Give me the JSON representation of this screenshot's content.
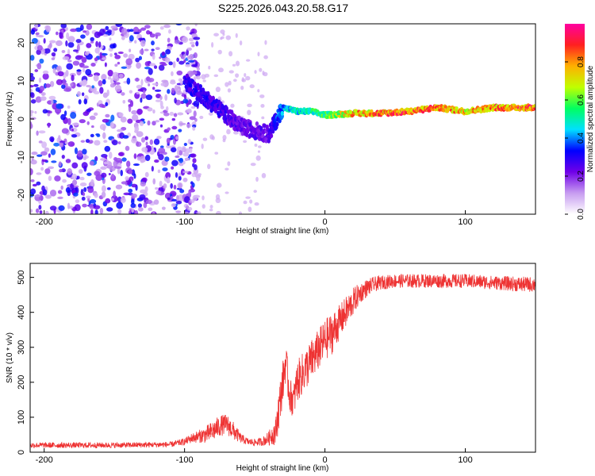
{
  "figure": {
    "title": "S225.2026.043.20.58.G17"
  },
  "chart_data": [
    {
      "type": "heatmap",
      "title": "S225.2026.043.20.58.G17",
      "xlabel": "Height of straight line (km)",
      "ylabel": "Frequency (Hz)",
      "xlim": [
        -210,
        150
      ],
      "ylim": [
        -25,
        25
      ],
      "xticks": [
        -200,
        -100,
        0,
        100
      ],
      "yticks": [
        -20,
        -10,
        0,
        10,
        20
      ],
      "colorbar": {
        "label": "Normalized spectral amplitude",
        "range": [
          0.0,
          1.0
        ],
        "ticks": [
          0.0,
          0.2,
          0.4,
          0.6,
          0.8
        ],
        "tick_labels": [
          "0.0",
          "0.2",
          "0.4",
          "0.6",
          "0.8"
        ],
        "colors": [
          "#ffffff",
          "#c79cf0",
          "#7000e8",
          "#0000ff",
          "#00e0ff",
          "#00ff60",
          "#c0ff00",
          "#ffb000",
          "#ff2020",
          "#ff00a0"
        ]
      },
      "ridge": {
        "description_points_height_km": [
          -100,
          -80,
          -60,
          -40,
          -30,
          -20,
          -10,
          0,
          20,
          40,
          60,
          80,
          100,
          120,
          150
        ],
        "frequency_hz": [
          10,
          4,
          -2,
          -4,
          3,
          2,
          2,
          1,
          1.5,
          1.5,
          2,
          3,
          2,
          3,
          3
        ],
        "amplitude": [
          0.3,
          0.3,
          0.25,
          0.25,
          0.45,
          0.5,
          0.55,
          0.6,
          0.8,
          0.85,
          0.9,
          0.85,
          0.8,
          0.85,
          0.9
        ]
      },
      "noise_region_km": [
        -210,
        -100
      ]
    },
    {
      "type": "line",
      "xlabel": "Height of straight line (km)",
      "ylabel": "SNR (10 * v/v)",
      "xlim": [
        -210,
        150
      ],
      "ylim": [
        0,
        540
      ],
      "xticks": [
        -200,
        -100,
        0,
        100
      ],
      "yticks": [
        0,
        100,
        200,
        300,
        400,
        500
      ],
      "color": "#ee3333",
      "series": [
        {
          "name": "SNR",
          "x": [
            -210,
            -150,
            -110,
            -100,
            -95,
            -90,
            -85,
            -80,
            -75,
            -70,
            -65,
            -60,
            -55,
            -50,
            -45,
            -40,
            -35,
            -33,
            -30,
            -28,
            -25,
            -22,
            -20,
            -15,
            -10,
            -5,
            0,
            5,
            10,
            15,
            20,
            25,
            30,
            35,
            40,
            50,
            60,
            80,
            100,
            120,
            140,
            150
          ],
          "y": [
            20,
            20,
            22,
            30,
            40,
            45,
            50,
            60,
            75,
            80,
            60,
            40,
            30,
            28,
            30,
            40,
            60,
            120,
            200,
            260,
            160,
            150,
            200,
            230,
            260,
            290,
            320,
            340,
            370,
            400,
            430,
            455,
            470,
            480,
            485,
            490,
            490,
            490,
            490,
            485,
            480,
            480
          ],
          "noise": [
            8,
            8,
            8,
            10,
            14,
            18,
            24,
            30,
            30,
            30,
            26,
            14,
            10,
            10,
            12,
            20,
            40,
            60,
            60,
            60,
            50,
            50,
            60,
            60,
            60,
            60,
            60,
            60,
            50,
            45,
            40,
            30,
            25,
            22,
            20,
            20,
            20,
            20,
            20,
            20,
            22,
            22
          ]
        }
      ]
    }
  ]
}
